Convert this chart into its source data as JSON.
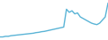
{
  "x": [
    0,
    1,
    2,
    3,
    4,
    5,
    6,
    7,
    8,
    9,
    10,
    11,
    12,
    13,
    14,
    15,
    16,
    17,
    18,
    19,
    20,
    21,
    22,
    23,
    24,
    25,
    26,
    27,
    28,
    29,
    30,
    31,
    32,
    33,
    34,
    35,
    36,
    37,
    38,
    39
  ],
  "y": [
    1,
    1,
    1.2,
    1.2,
    1.4,
    1.5,
    1.6,
    1.7,
    1.8,
    1.9,
    2.0,
    2.1,
    2.2,
    2.4,
    2.5,
    2.7,
    2.8,
    3.0,
    3.2,
    3.4,
    3.6,
    3.8,
    4.0,
    4.2,
    10.0,
    9.0,
    9.5,
    8.5,
    8.8,
    7.5,
    7.0,
    6.5,
    6.0,
    5.5,
    5.2,
    5.0,
    5.5,
    6.5,
    7.5,
    12.0
  ],
  "line_color": "#5ab4d6",
  "background_color": "#ffffff",
  "linewidth": 1.0,
  "ylim_min": 0,
  "ylim_max": 13
}
